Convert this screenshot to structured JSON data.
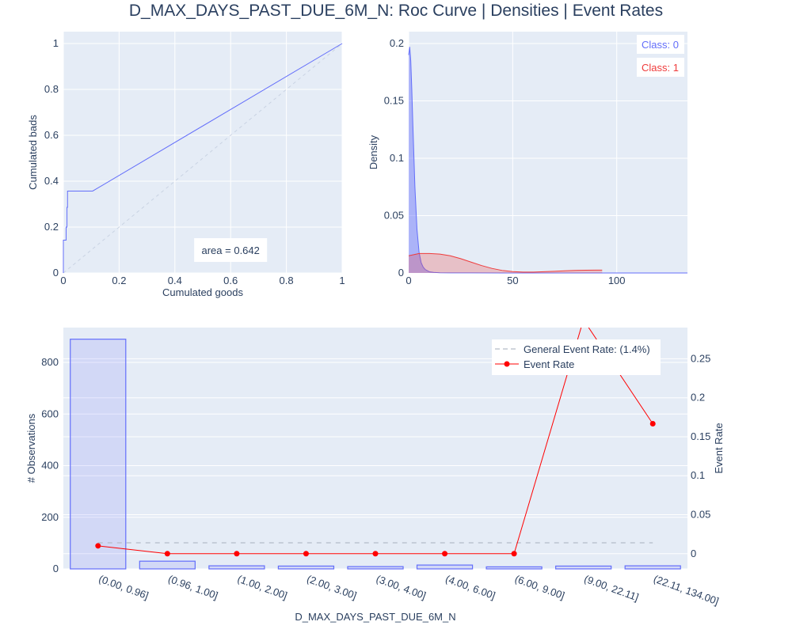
{
  "title": "D_MAX_DAYS_PAST_DUE_6M_N: Roc Curve | Densities | Event Rates",
  "colors": {
    "plot_bg": "#e5ecf6",
    "grid": "#ffffff",
    "blue": "#636efa",
    "blue_line": "#5b63e8",
    "red": "#ef3b3b",
    "event_red": "#ff0000",
    "text": "#2a3f5f"
  },
  "chart_data": [
    {
      "type": "line",
      "name": "roc",
      "xlabel": "Cumulated goods",
      "ylabel": "Cumulated bads",
      "xlim": [
        0,
        1
      ],
      "ylim": [
        0,
        1
      ],
      "x_ticks": [
        0,
        0.2,
        0.4,
        0.6,
        0.8,
        1
      ],
      "x_tick_labels": [
        "0",
        "0.2",
        "0.4",
        "0.6",
        "0.8",
        "1"
      ],
      "y_ticks": [
        0,
        0.2,
        0.4,
        0.6,
        0.8,
        1
      ],
      "y_tick_labels": [
        "0",
        "0.2",
        "0.4",
        "0.6",
        "0.8",
        "1"
      ],
      "curve": {
        "x": [
          0,
          0,
          0.01,
          0.01,
          0.013,
          0.013,
          0.015,
          0.015,
          0.105,
          1.0
        ],
        "y": [
          0,
          0.143,
          0.143,
          0.2,
          0.2,
          0.286,
          0.286,
          0.357,
          0.357,
          1.0
        ]
      },
      "diagonal": {
        "x": [
          0,
          1
        ],
        "y": [
          0,
          1
        ]
      },
      "annotation": "area = 0.642",
      "annotation_pos": [
        0.6,
        0.1
      ],
      "grid": true
    },
    {
      "type": "area",
      "name": "densities",
      "ylabel": "Density",
      "xlim": [
        0,
        134
      ],
      "ylim": [
        0,
        0.21
      ],
      "x_ticks": [
        0,
        50,
        100
      ],
      "x_tick_labels": [
        "0",
        "50",
        "100"
      ],
      "y_ticks": [
        0,
        0.05,
        0.1,
        0.15,
        0.2
      ],
      "y_tick_labels": [
        "0",
        "0.05",
        "0.1",
        "0.15",
        "0.2"
      ],
      "legend": [
        "Class: 0",
        "Class: 1"
      ],
      "legend_position": "top-right",
      "series": [
        {
          "name": "Class: 0",
          "x": [
            0,
            0.5,
            1,
            1.5,
            2,
            3,
            4,
            5,
            6,
            7,
            8,
            10,
            12,
            15,
            20,
            30,
            60,
            134
          ],
          "y": [
            0.19,
            0.197,
            0.185,
            0.16,
            0.13,
            0.075,
            0.038,
            0.018,
            0.009,
            0.005,
            0.003,
            0.001,
            0.0005,
            0.0002,
            0.0001,
            5e-05,
            0.0,
            0.0
          ]
        },
        {
          "name": "Class: 1",
          "x": [
            0,
            5,
            10,
            15,
            20,
            25,
            30,
            35,
            40,
            45,
            50,
            55,
            60,
            65,
            70,
            75,
            80,
            85,
            90,
            93
          ],
          "y": [
            0.015,
            0.017,
            0.017,
            0.0165,
            0.015,
            0.0125,
            0.0095,
            0.0065,
            0.004,
            0.0022,
            0.0012,
            0.0008,
            0.0008,
            0.0011,
            0.0015,
            0.0019,
            0.0022,
            0.0024,
            0.0025,
            0.0025
          ]
        }
      ],
      "grid": true
    },
    {
      "type": "bar",
      "name": "event_rates",
      "xlabel": "D_MAX_DAYS_PAST_DUE_6M_N",
      "ylabel": "# Observations",
      "y2label": "Event Rate",
      "categories": [
        "(0.00, 0.96]",
        "(0.96, 1.00]",
        "(1.00, 2.00]",
        "(2.00, 3.00]",
        "(3.00, 4.00]",
        "(4.00, 6.00]",
        "(6.00, 9.00]",
        "(9.00, 22.11]",
        "(22.11, 134.00]"
      ],
      "values": [
        890,
        30,
        12,
        11,
        9,
        15,
        8,
        11,
        12
      ],
      "ylim": [
        0,
        935
      ],
      "y_ticks": [
        0,
        200,
        400,
        600,
        800
      ],
      "y_tick_labels": [
        "0",
        "200",
        "400",
        "600",
        "800"
      ],
      "y2lim": [
        -0.0195,
        0.29
      ],
      "y2_ticks": [
        0,
        0.05,
        0.1,
        0.15,
        0.2,
        0.25
      ],
      "y2_tick_labels": [
        "0",
        "0.05",
        "0.1",
        "0.15",
        "0.2",
        "0.25"
      ],
      "event_rate": [
        0.0101,
        0.0,
        0.0,
        0.0,
        0.0,
        0.0,
        0.0,
        0.3,
        0.1667
      ],
      "general_event_rate": 0.014,
      "legend": [
        "General Event Rate: (1.4%)",
        "Event Rate"
      ],
      "legend_position": "top-right",
      "grid": true
    }
  ]
}
